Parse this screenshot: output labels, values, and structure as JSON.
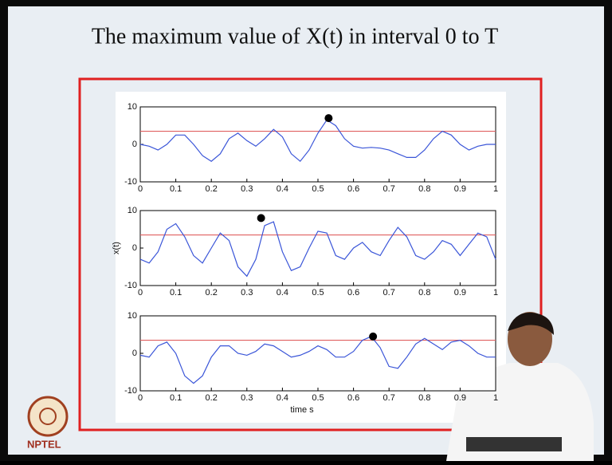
{
  "title": "The maximum value of X(t) in interval 0 to T",
  "logo": "NPTEL",
  "chart_data": [
    {
      "type": "line",
      "color": "#3a55d8",
      "x": [
        0,
        0.025,
        0.05,
        0.075,
        0.1,
        0.125,
        0.15,
        0.175,
        0.2,
        0.225,
        0.25,
        0.275,
        0.3,
        0.325,
        0.35,
        0.375,
        0.4,
        0.425,
        0.45,
        0.475,
        0.5,
        0.525,
        0.55,
        0.575,
        0.6,
        0.625,
        0.65,
        0.675,
        0.7,
        0.725,
        0.75,
        0.775,
        0.8,
        0.825,
        0.85,
        0.875,
        0.9,
        0.925,
        0.95,
        0.975,
        1
      ],
      "values": [
        0,
        -0.5,
        -1.5,
        0,
        2.5,
        2.5,
        0,
        -3,
        -4.5,
        -2.5,
        1.5,
        3,
        1,
        -0.5,
        1.5,
        4,
        2,
        -2.5,
        -4.5,
        -1.5,
        3,
        6.5,
        5,
        1.5,
        -0.5,
        -1,
        -0.8,
        -1,
        -1.5,
        -2.5,
        -3.5,
        -3.5,
        -1.5,
        1.5,
        3.5,
        2.5,
        0,
        -1.5,
        -0.5,
        0,
        0
      ],
      "threshold": 3.5,
      "threshold_color": "#e06060",
      "max_point": {
        "x": 0.53,
        "y": 7
      },
      "xlim": [
        0,
        1
      ],
      "xticks": [
        0,
        0.1,
        0.2,
        0.3,
        0.4,
        0.5,
        0.6,
        0.7,
        0.8,
        0.9,
        1
      ],
      "ylim": [
        -10,
        10
      ],
      "yticks": [
        -10,
        0,
        10
      ]
    },
    {
      "type": "line",
      "color": "#3a55d8",
      "y_label": "x(t)",
      "x": [
        0,
        0.025,
        0.05,
        0.075,
        0.1,
        0.125,
        0.15,
        0.175,
        0.2,
        0.225,
        0.25,
        0.275,
        0.3,
        0.325,
        0.35,
        0.375,
        0.4,
        0.425,
        0.45,
        0.475,
        0.5,
        0.525,
        0.55,
        0.575,
        0.6,
        0.625,
        0.65,
        0.675,
        0.7,
        0.725,
        0.75,
        0.775,
        0.8,
        0.825,
        0.85,
        0.875,
        0.9,
        0.925,
        0.95,
        0.975,
        1
      ],
      "values": [
        -3,
        -4,
        -1,
        5,
        6.5,
        3,
        -2,
        -4,
        0,
        4,
        2,
        -5,
        -7.5,
        -3,
        6,
        7,
        -1,
        -6,
        -5,
        0,
        4.5,
        4,
        -2,
        -3,
        0,
        1.5,
        -1,
        -2,
        2,
        5.5,
        3,
        -2,
        -3,
        -1,
        2,
        1,
        -2,
        1,
        4,
        3,
        -3
      ],
      "threshold": 3.5,
      "threshold_color": "#e06060",
      "max_point": {
        "x": 0.34,
        "y": 8
      },
      "xlim": [
        0,
        1
      ],
      "xticks": [
        0,
        0.1,
        0.2,
        0.3,
        0.4,
        0.5,
        0.6,
        0.7,
        0.8,
        0.9,
        1
      ],
      "ylim": [
        -10,
        10
      ],
      "yticks": [
        -10,
        0,
        10
      ]
    },
    {
      "type": "line",
      "color": "#3a55d8",
      "x_label": "time s",
      "x": [
        0,
        0.025,
        0.05,
        0.075,
        0.1,
        0.125,
        0.15,
        0.175,
        0.2,
        0.225,
        0.25,
        0.275,
        0.3,
        0.325,
        0.35,
        0.375,
        0.4,
        0.425,
        0.45,
        0.475,
        0.5,
        0.525,
        0.55,
        0.575,
        0.6,
        0.625,
        0.65,
        0.675,
        0.7,
        0.725,
        0.75,
        0.775,
        0.8,
        0.825,
        0.85,
        0.875,
        0.9,
        0.925,
        0.95,
        0.975,
        1
      ],
      "values": [
        -0.5,
        -1,
        2,
        3,
        0,
        -6,
        -8,
        -6,
        -1,
        2,
        2,
        0,
        -0.5,
        0.5,
        2.5,
        2,
        0.5,
        -1,
        -0.5,
        0.5,
        2,
        1,
        -1,
        -1,
        0.5,
        3.5,
        4.5,
        1.5,
        -3.5,
        -4,
        -1,
        2.5,
        4,
        2.5,
        1,
        3,
        3.5,
        2,
        0,
        -1,
        -1
      ],
      "threshold": 3.5,
      "threshold_color": "#e06060",
      "max_point": {
        "x": 0.655,
        "y": 4.5
      },
      "xlim": [
        0,
        1
      ],
      "xticks": [
        0,
        0.1,
        0.2,
        0.3,
        0.4,
        0.5,
        0.6,
        0.7,
        0.8,
        0.9,
        1
      ],
      "ylim": [
        -10,
        10
      ],
      "yticks": [
        -10,
        0,
        10
      ]
    }
  ]
}
